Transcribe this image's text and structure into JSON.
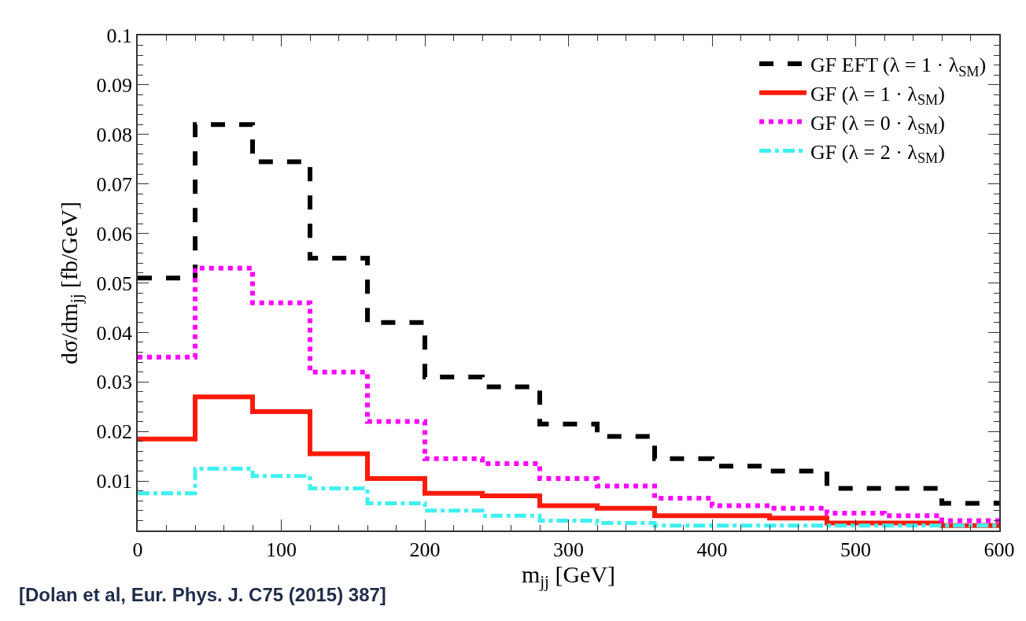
{
  "chart_data": {
    "type": "histogram",
    "xlabel": "m$_{jj}$ [GeV]",
    "ylabel": "dσ/dm$_{jj}$ [fb/GeV]",
    "annotations": [
      "[Dolan et al, Eur. Phys. J. C75 (2015) 387]"
    ],
    "bins": [
      0,
      40,
      80,
      120,
      160,
      200,
      240,
      280,
      320,
      360,
      400,
      440,
      480,
      520,
      560,
      600
    ],
    "series": [
      {
        "name": "GF EFT (λ = 1 · λ$_{SM}$)",
        "color": "#000000",
        "line_style": "dashed",
        "values": [
          0.051,
          0.082,
          0.0745,
          0.055,
          0.042,
          0.031,
          0.029,
          0.0215,
          0.019,
          0.0145,
          0.013,
          0.012,
          0.0085,
          0.0085,
          0.0055
        ]
      },
      {
        "name": "GF (λ = 1 · λ$_{SM}$)",
        "color": "#ff1a0a",
        "line_style": "solid",
        "values": [
          0.0185,
          0.027,
          0.024,
          0.0155,
          0.0105,
          0.0075,
          0.007,
          0.005,
          0.0045,
          0.003,
          0.003,
          0.0025,
          0.0015,
          0.0015,
          0.001
        ]
      },
      {
        "name": "GF (λ = 0 · λ$_{SM}$)",
        "color": "#ff00ff",
        "line_style": "dotted",
        "values": [
          0.035,
          0.053,
          0.046,
          0.032,
          0.022,
          0.0145,
          0.0135,
          0.0105,
          0.009,
          0.0065,
          0.005,
          0.0045,
          0.0035,
          0.003,
          0.002
        ]
      },
      {
        "name": "GF (λ = 2 · λ$_{SM}$)",
        "color": "#40f0f0",
        "line_style": "dashdot",
        "values": [
          0.0075,
          0.0125,
          0.011,
          0.0085,
          0.0055,
          0.004,
          0.003,
          0.002,
          0.0015,
          0.001,
          0.001,
          0.001,
          0.001,
          0.001,
          0.001
        ]
      }
    ],
    "xlim": [
      0,
      600
    ],
    "xticks": [
      0,
      100,
      200,
      300,
      400,
      500,
      600
    ],
    "ylim": [
      0,
      0.1
    ],
    "yticks": [
      {
        "value": 0,
        "label": null
      },
      0.01,
      0.02,
      0.03,
      0.04,
      0.05,
      0.06,
      0.07,
      0.08,
      0.09,
      0.1
    ],
    "legend": "top right"
  }
}
